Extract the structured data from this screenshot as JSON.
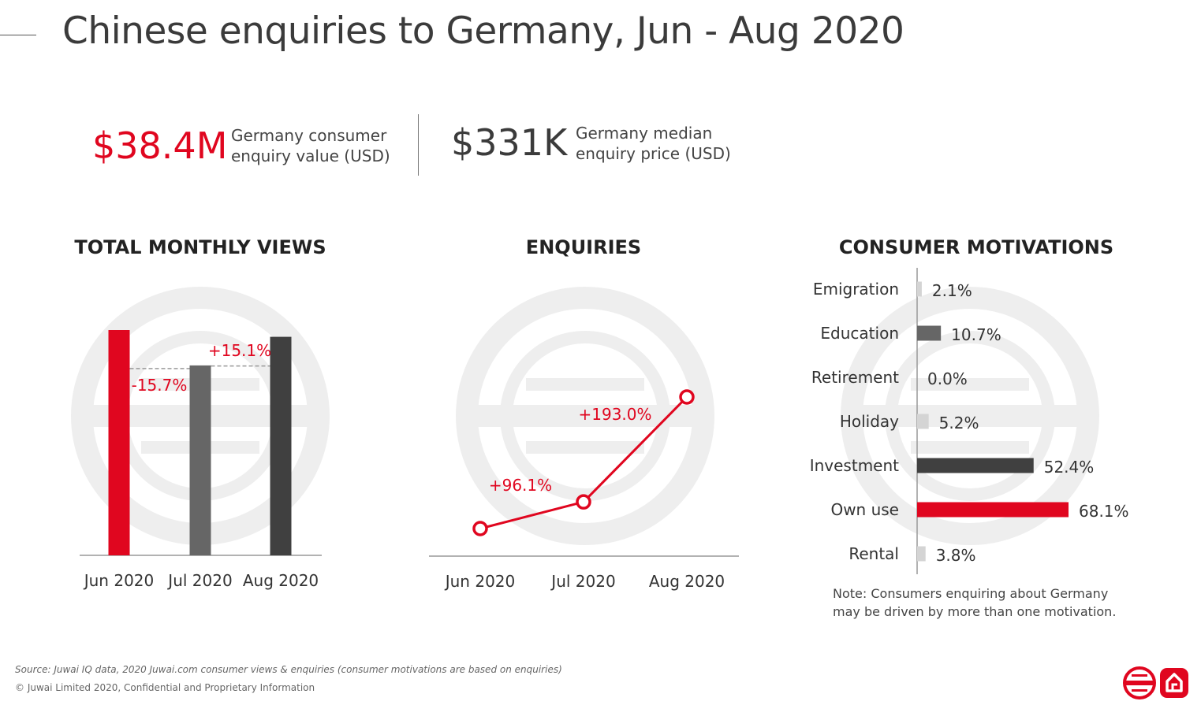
{
  "page": {
    "title": "Chinese enquiries to Germany, Jun - Aug 2020",
    "source": "Source: Juwai IQ data, 2020 Juwai.com consumer views & enquiries (consumer motivations are based on enquiries)",
    "copyright": "© Juwai Limited 2020, Confidential and Proprietary Information",
    "note": "Note: Consumers enquiring about Germany may be driven by more than one motivation."
  },
  "kpis": [
    {
      "value": "$38.4M",
      "label": "Germany consumer enquiry value (USD)",
      "color": "#e0061f"
    },
    {
      "value": "$331K",
      "label": "Germany median enquiry price (USD)",
      "color": "#3b3b3b"
    }
  ],
  "colors": {
    "red": "#e0061f",
    "gray": "#666666",
    "dark": "#444444",
    "light": "#d4d4d4",
    "watermark": "#eeeeee"
  },
  "icons": [
    "juwai-logo-icon",
    "home-icon"
  ],
  "chart_data": [
    {
      "type": "bar",
      "title": "TOTAL MONTHLY VIEWS",
      "categories": [
        "Jun 2020",
        "Jul 2020",
        "Aug 2020"
      ],
      "values": [
        100,
        84.3,
        97.0
      ],
      "relative_index": "Jun 2020 = 100; axis values not printed",
      "bar_colors": [
        "#e0061f",
        "#666666",
        "#404040"
      ],
      "annotations": [
        {
          "between": [
            "Jun 2020",
            "Jul 2020"
          ],
          "text": "-15.7%"
        },
        {
          "between": [
            "Jul 2020",
            "Aug 2020"
          ],
          "text": "+15.1%"
        }
      ]
    },
    {
      "type": "line",
      "title": "ENQUIRIES",
      "categories": [
        "Jun 2020",
        "Jul 2020",
        "Aug 2020"
      ],
      "values": [
        100,
        196.1,
        574.6
      ],
      "relative_index": "Jun 2020 = 100; axis values not printed",
      "color": "#e0061f",
      "annotations": [
        {
          "between": [
            "Jun 2020",
            "Jul 2020"
          ],
          "text": "+96.1%"
        },
        {
          "between": [
            "Jul 2020",
            "Aug 2020"
          ],
          "text": "+193.0%"
        }
      ]
    },
    {
      "type": "bar",
      "orientation": "horizontal",
      "title": "CONSUMER MOTIVATIONS",
      "categories": [
        "Emigration",
        "Education",
        "Retirement",
        "Holiday",
        "Investment",
        "Own use",
        "Rental"
      ],
      "values": [
        2.1,
        10.7,
        0.0,
        5.2,
        52.4,
        68.1,
        3.8
      ],
      "labels": [
        "2.1%",
        "10.7%",
        "0.0%",
        "5.2%",
        "52.4%",
        "68.1%",
        "3.8%"
      ],
      "bar_colors": [
        "#d4d4d4",
        "#666666",
        "#d4d4d4",
        "#d4d4d4",
        "#404040",
        "#e0061f",
        "#d4d4d4"
      ],
      "unit": "%"
    }
  ]
}
